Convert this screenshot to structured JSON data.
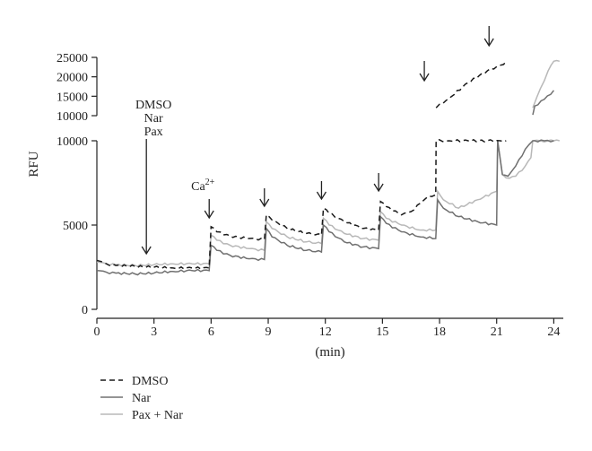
{
  "chart_data": {
    "type": "line",
    "xlabel": "(min)",
    "ylabel": "RFU",
    "xlim": [
      0,
      24.5
    ],
    "xticks": [
      0,
      3,
      6,
      9,
      12,
      15,
      18,
      21,
      24
    ],
    "lower_panel": {
      "ylim": [
        0,
        10000
      ],
      "yticks": [
        0,
        5000,
        10000
      ]
    },
    "upper_panel": {
      "ylim": [
        10000,
        25000
      ],
      "yticks": [
        10000,
        15000,
        20000,
        25000
      ]
    },
    "legend_placement": "bottom-left",
    "annotations": [
      {
        "lines": [
          "DMSO",
          "Nar",
          "Pax"
        ],
        "arrow_x": 2.6
      },
      {
        "lines": [
          "Ca"
        ],
        "superscript": "2+",
        "arrow_x": 5.9
      },
      {
        "lines": [],
        "arrow_x": 8.8
      },
      {
        "lines": [],
        "arrow_x": 11.8
      },
      {
        "lines": [],
        "arrow_x": 14.8
      },
      {
        "lines": [],
        "arrow_x": 17.2
      },
      {
        "lines": [],
        "arrow_x": 20.6
      }
    ],
    "series": [
      {
        "name": "DMSO",
        "color": "#1a1a1a",
        "dash": "dashed",
        "points": [
          [
            0,
            2900
          ],
          [
            0.5,
            2700
          ],
          [
            1,
            2600
          ],
          [
            2,
            2550
          ],
          [
            3,
            2500
          ],
          [
            4,
            2450
          ],
          [
            5,
            2450
          ],
          [
            5.9,
            2450
          ],
          [
            6.0,
            4900
          ],
          [
            6.3,
            4600
          ],
          [
            7,
            4350
          ],
          [
            8,
            4200
          ],
          [
            8.8,
            4150
          ],
          [
            8.9,
            5600
          ],
          [
            9.2,
            5300
          ],
          [
            10,
            4800
          ],
          [
            11,
            4500
          ],
          [
            11.8,
            4400
          ],
          [
            11.9,
            6000
          ],
          [
            12.2,
            5700
          ],
          [
            13,
            5200
          ],
          [
            14,
            4800
          ],
          [
            14.8,
            4700
          ],
          [
            14.9,
            6400
          ],
          [
            15.2,
            6100
          ],
          [
            16,
            5600
          ],
          [
            16.5,
            5800
          ],
          [
            17.0,
            6300
          ],
          [
            17.4,
            6700
          ],
          [
            17.8,
            6800
          ],
          [
            17.82,
            12000
          ],
          [
            18.5,
            14500
          ],
          [
            19.5,
            18500
          ],
          [
            20.5,
            21500
          ],
          [
            21.2,
            23000
          ],
          [
            21.5,
            23800
          ]
        ]
      },
      {
        "name": "Nar",
        "color": "#707070",
        "dash": "solid",
        "points": [
          [
            0,
            2300
          ],
          [
            0.5,
            2200
          ],
          [
            1,
            2150
          ],
          [
            2,
            2100
          ],
          [
            3,
            2150
          ],
          [
            4,
            2250
          ],
          [
            5,
            2300
          ],
          [
            5.9,
            2300
          ],
          [
            6.0,
            3800
          ],
          [
            6.3,
            3500
          ],
          [
            7,
            3200
          ],
          [
            8,
            3000
          ],
          [
            8.8,
            2950
          ],
          [
            8.9,
            4800
          ],
          [
            9.2,
            4300
          ],
          [
            10,
            3800
          ],
          [
            11,
            3500
          ],
          [
            11.8,
            3400
          ],
          [
            11.9,
            5000
          ],
          [
            12.2,
            4600
          ],
          [
            13,
            4000
          ],
          [
            14,
            3700
          ],
          [
            14.8,
            3600
          ],
          [
            14.9,
            5500
          ],
          [
            15.2,
            5100
          ],
          [
            16,
            4600
          ],
          [
            17,
            4300
          ],
          [
            17.8,
            4200
          ],
          [
            17.9,
            6500
          ],
          [
            18.2,
            6000
          ],
          [
            19,
            5500
          ],
          [
            20,
            5200
          ],
          [
            21.0,
            5000
          ],
          [
            21.05,
            10100
          ],
          [
            21.3,
            8000
          ],
          [
            21.6,
            7900
          ],
          [
            22,
            8500
          ],
          [
            22.5,
            9500
          ],
          [
            22.9,
            10200
          ],
          [
            23.0,
            12500
          ],
          [
            23.5,
            14200
          ],
          [
            24.0,
            16500
          ]
        ]
      },
      {
        "name": "Pax + Nar",
        "color": "#b8b8b8",
        "dash": "solid",
        "points": [
          [
            0,
            2800
          ],
          [
            0.5,
            2700
          ],
          [
            1,
            2650
          ],
          [
            2,
            2600
          ],
          [
            3,
            2650
          ],
          [
            4,
            2700
          ],
          [
            5,
            2700
          ],
          [
            5.9,
            2700
          ],
          [
            6.0,
            4400
          ],
          [
            6.3,
            4100
          ],
          [
            7,
            3800
          ],
          [
            8,
            3600
          ],
          [
            8.8,
            3500
          ],
          [
            8.9,
            5200
          ],
          [
            9.2,
            4800
          ],
          [
            10,
            4300
          ],
          [
            11,
            4000
          ],
          [
            11.8,
            3900
          ],
          [
            11.9,
            5400
          ],
          [
            12.2,
            5000
          ],
          [
            13,
            4500
          ],
          [
            14,
            4200
          ],
          [
            14.8,
            4100
          ],
          [
            14.9,
            5800
          ],
          [
            15.2,
            5400
          ],
          [
            16,
            5000
          ],
          [
            17,
            4700
          ],
          [
            17.8,
            4700
          ],
          [
            17.9,
            7000
          ],
          [
            18.2,
            6500
          ],
          [
            19,
            6000
          ],
          [
            20,
            6500
          ],
          [
            21.0,
            7000
          ],
          [
            21.05,
            10000
          ],
          [
            21.3,
            8000
          ],
          [
            21.5,
            7800
          ],
          [
            22,
            7900
          ],
          [
            22.5,
            8500
          ],
          [
            22.8,
            9000
          ],
          [
            22.9,
            12000
          ],
          [
            23.3,
            17000
          ],
          [
            23.7,
            21500
          ],
          [
            24.0,
            24000
          ],
          [
            24.3,
            24000
          ]
        ]
      }
    ]
  }
}
